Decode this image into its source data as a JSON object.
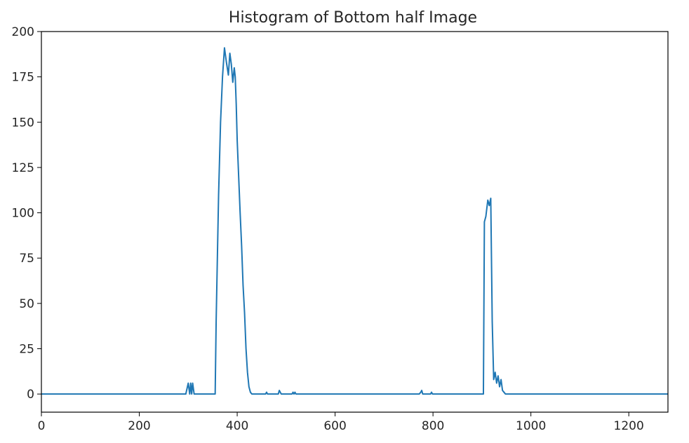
{
  "chart_data": {
    "type": "line",
    "title": "Histogram of Bottom half Image",
    "xlabel": "",
    "ylabel": "",
    "xlim": [
      0,
      1280
    ],
    "ylim": [
      -10,
      200
    ],
    "x_ticks": [
      0,
      200,
      400,
      600,
      800,
      1000,
      1200
    ],
    "y_ticks": [
      0,
      25,
      50,
      75,
      100,
      125,
      150,
      175,
      200
    ],
    "grid": false,
    "legend": "none",
    "series": [
      {
        "color": "#1f77b4",
        "x": [
          0,
          295,
          300,
          303,
          305,
          307,
          309,
          312,
          355,
          357,
          362,
          366,
          370,
          374,
          378,
          382,
          385,
          388,
          391,
          394,
          396,
          398,
          400,
          403,
          406,
          409,
          412,
          415,
          418,
          421,
          424,
          427,
          430,
          433,
          440,
          458,
          460,
          462,
          484,
          486,
          488,
          490,
          512,
          514,
          516,
          518,
          520,
          522,
          772,
          775,
          777,
          779,
          795,
          797,
          799,
          903,
          905,
          908,
          912,
          915,
          918,
          921,
          924,
          927,
          930,
          933,
          936,
          939,
          942,
          945,
          948,
          953,
          1280
        ],
        "y": [
          0,
          0,
          6,
          0,
          6,
          0,
          6,
          0,
          0,
          40,
          110,
          150,
          175,
          191,
          183,
          176,
          188,
          182,
          172,
          180,
          175,
          160,
          140,
          120,
          100,
          82,
          60,
          45,
          25,
          12,
          4,
          1,
          0,
          0,
          0,
          0,
          1,
          0,
          0,
          2,
          1,
          0,
          0,
          1,
          0,
          1,
          0,
          0,
          0,
          1,
          2,
          0,
          0,
          1,
          0,
          0,
          95,
          98,
          107,
          104,
          108,
          40,
          8,
          12,
          6,
          10,
          4,
          8,
          2,
          1,
          0,
          0,
          0
        ]
      }
    ]
  }
}
